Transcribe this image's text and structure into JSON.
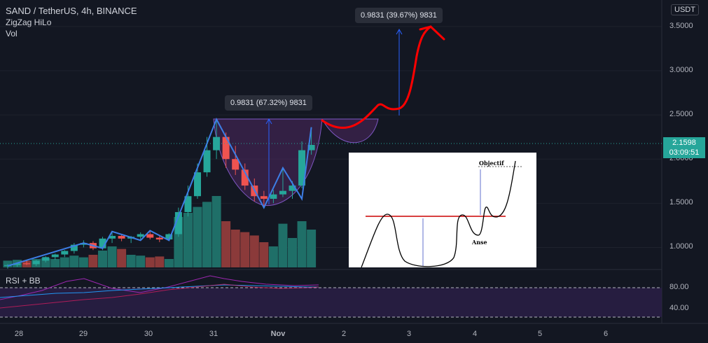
{
  "legend": {
    "title": "SAND / TetherUS, 4h, BINANCE",
    "line2": "ZigZag HiLo",
    "line3": "Vol"
  },
  "rsi_label": "RSI + BB",
  "currency": "USDT",
  "last_price": {
    "value": "2.1598",
    "timer": "03:09:51"
  },
  "callouts": {
    "upper": "0.9831 (39.67%) 9831",
    "lower": "0.9831 (67.32%) 9831"
  },
  "inset": {
    "objective_label": "Objectif",
    "handle_label": "Anse"
  },
  "colors": {
    "up": "#26a69a",
    "down": "#ef5350",
    "background": "#131722",
    "zigzag": "#2962ff",
    "drawing": "#ff0000"
  },
  "chart_data": {
    "type": "candlestick",
    "title": "SAND / TetherUS, 4h, BINANCE",
    "y_ticks": [
      "1.0000",
      "1.5000",
      "2.0000",
      "2.5000",
      "3.0000",
      "3.5000"
    ],
    "x_ticks": [
      "28",
      "29",
      "30",
      "31",
      "Nov",
      "2",
      "3",
      "4",
      "5",
      "6"
    ],
    "ylim": [
      0.75,
      3.8
    ],
    "candles": [
      {
        "o": 0.79,
        "h": 0.81,
        "l": 0.76,
        "c": 0.8
      },
      {
        "o": 0.8,
        "h": 0.83,
        "l": 0.78,
        "c": 0.82
      },
      {
        "o": 0.82,
        "h": 0.85,
        "l": 0.8,
        "c": 0.81
      },
      {
        "o": 0.81,
        "h": 0.86,
        "l": 0.79,
        "c": 0.85
      },
      {
        "o": 0.85,
        "h": 0.9,
        "l": 0.83,
        "c": 0.89
      },
      {
        "o": 0.89,
        "h": 0.93,
        "l": 0.86,
        "c": 0.92
      },
      {
        "o": 0.92,
        "h": 0.97,
        "l": 0.89,
        "c": 0.96
      },
      {
        "o": 0.96,
        "h": 1.05,
        "l": 0.93,
        "c": 1.03
      },
      {
        "o": 1.03,
        "h": 1.08,
        "l": 1.0,
        "c": 1.05
      },
      {
        "o": 1.05,
        "h": 1.07,
        "l": 0.97,
        "c": 0.99
      },
      {
        "o": 0.99,
        "h": 1.12,
        "l": 0.97,
        "c": 1.1
      },
      {
        "o": 1.1,
        "h": 1.18,
        "l": 1.05,
        "c": 1.13
      },
      {
        "o": 1.13,
        "h": 1.15,
        "l": 1.07,
        "c": 1.1
      },
      {
        "o": 1.1,
        "h": 1.13,
        "l": 1.05,
        "c": 1.12
      },
      {
        "o": 1.12,
        "h": 1.17,
        "l": 1.08,
        "c": 1.15
      },
      {
        "o": 1.15,
        "h": 1.19,
        "l": 1.09,
        "c": 1.11
      },
      {
        "o": 1.11,
        "h": 1.14,
        "l": 1.06,
        "c": 1.09
      },
      {
        "o": 1.09,
        "h": 1.16,
        "l": 1.08,
        "c": 1.15
      },
      {
        "o": 1.15,
        "h": 1.45,
        "l": 1.12,
        "c": 1.4
      },
      {
        "o": 1.4,
        "h": 1.7,
        "l": 1.35,
        "c": 1.58
      },
      {
        "o": 1.58,
        "h": 1.95,
        "l": 1.55,
        "c": 1.85
      },
      {
        "o": 1.85,
        "h": 2.25,
        "l": 1.8,
        "c": 2.1
      },
      {
        "o": 2.1,
        "h": 2.45,
        "l": 2.0,
        "c": 2.25
      },
      {
        "o": 2.25,
        "h": 2.3,
        "l": 1.9,
        "c": 2.0
      },
      {
        "o": 2.0,
        "h": 2.15,
        "l": 1.82,
        "c": 1.88
      },
      {
        "o": 1.88,
        "h": 1.95,
        "l": 1.65,
        "c": 1.7
      },
      {
        "o": 1.7,
        "h": 1.78,
        "l": 1.52,
        "c": 1.58
      },
      {
        "o": 1.58,
        "h": 1.64,
        "l": 1.45,
        "c": 1.55
      },
      {
        "o": 1.55,
        "h": 1.65,
        "l": 1.5,
        "c": 1.6
      },
      {
        "o": 1.6,
        "h": 1.9,
        "l": 1.57,
        "c": 1.64
      },
      {
        "o": 1.64,
        "h": 1.75,
        "l": 1.55,
        "c": 1.7
      },
      {
        "o": 1.7,
        "h": 2.2,
        "l": 1.67,
        "c": 2.1
      },
      {
        "o": 2.1,
        "h": 2.36,
        "l": 2.05,
        "c": 2.16
      }
    ],
    "volumes": [
      0.08,
      0.09,
      0.08,
      0.1,
      0.11,
      0.1,
      0.12,
      0.14,
      0.12,
      0.15,
      0.2,
      0.25,
      0.22,
      0.15,
      0.14,
      0.12,
      0.13,
      0.1,
      0.6,
      0.65,
      0.72,
      0.78,
      0.85,
      0.55,
      0.45,
      0.42,
      0.38,
      0.3,
      0.25,
      0.52,
      0.35,
      0.55,
      0.45
    ],
    "zigzag": [
      [
        0,
        0.79
      ],
      [
        8,
        1.05
      ],
      [
        10,
        0.99
      ],
      [
        11,
        1.18
      ],
      [
        14,
        1.08
      ],
      [
        15,
        1.19
      ],
      [
        17,
        1.08
      ],
      [
        22,
        2.45
      ],
      [
        27,
        1.45
      ],
      [
        29,
        1.9
      ],
      [
        31,
        1.55
      ],
      [
        32,
        2.36
      ]
    ],
    "rsi_ticks": [
      "80.00",
      "40.00"
    ]
  }
}
